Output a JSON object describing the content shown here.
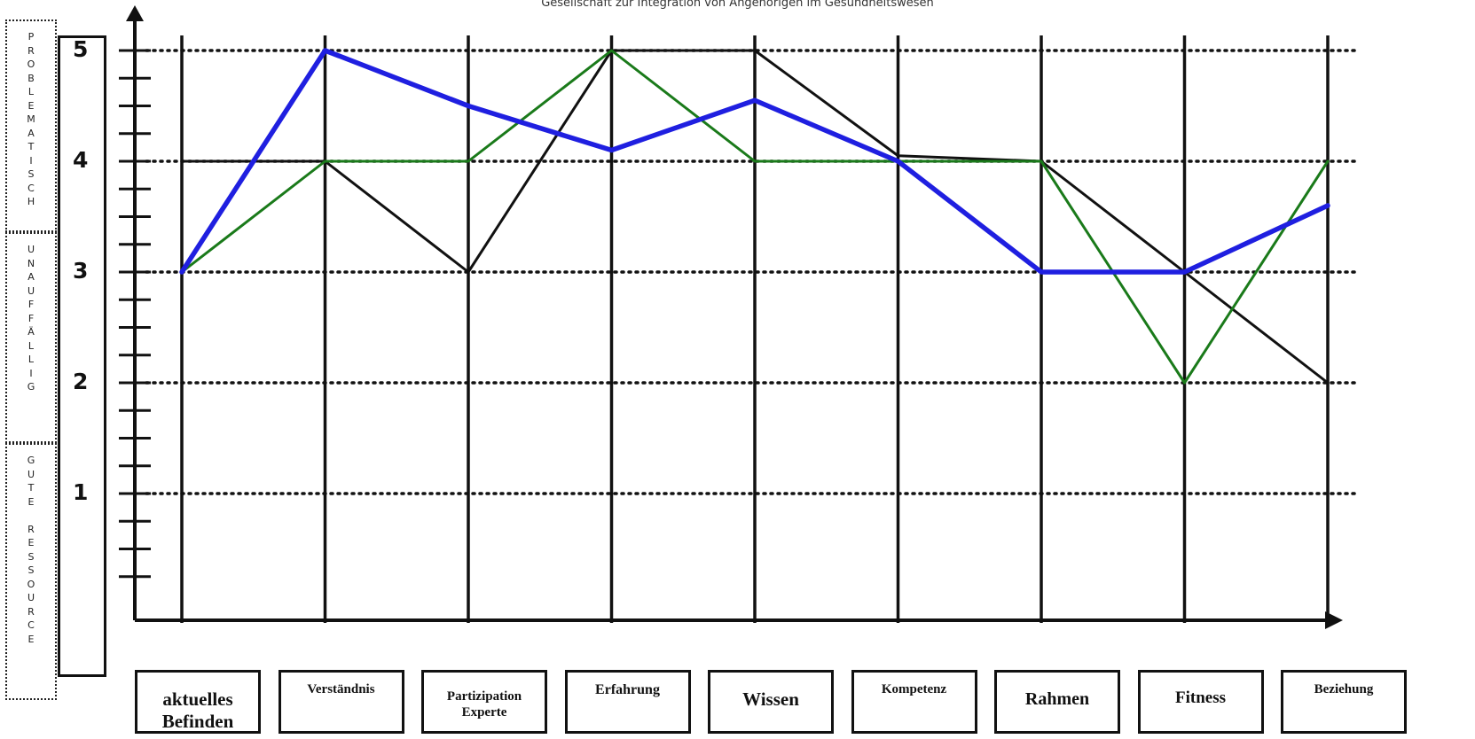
{
  "header": {
    "subtitle": "Gesellschaft zur Integration von Angehörigen im Gesundheitswesen"
  },
  "side_labels": {
    "problematisch": "PROBLEMATISCH",
    "unauffaellig": "UNAUFFÄLLIG",
    "gute_ressource": "GUTE RESSOURCE"
  },
  "chart_data": {
    "type": "line",
    "categories": [
      "aktuelles Befinden",
      "Verständnis",
      "Partizipation Experte",
      "Erfahrung",
      "Wissen",
      "Kompetenz",
      "Rahmen",
      "Fitness",
      "Beziehung"
    ],
    "category_lines": [
      [
        "aktuelles",
        "Befinden"
      ],
      [
        "Verständnis"
      ],
      [
        "Partizipation",
        "Experte"
      ],
      [
        "Erfahrung"
      ],
      [
        "Wissen"
      ],
      [
        "Kompetenz"
      ],
      [
        "Rahmen"
      ],
      [
        "Fitness"
      ],
      [
        "Beziehung"
      ]
    ],
    "y_tick_labels": [
      "1",
      "2",
      "3",
      "4",
      "5"
    ],
    "ylim": [
      0,
      5.3
    ],
    "gridlines": [
      1,
      2,
      3,
      4,
      5
    ],
    "series": [
      {
        "color": "#111111",
        "values": [
          4,
          4,
          3,
          5,
          5,
          4.05,
          4,
          3,
          2
        ]
      },
      {
        "color": "#1a7a1a",
        "values": [
          3,
          4,
          4,
          5,
          4,
          4,
          4,
          2,
          4
        ]
      },
      {
        "color": "#1f1fe0",
        "values": [
          3,
          5,
          4.5,
          4.1,
          4.55,
          4,
          3,
          3,
          3.6
        ]
      }
    ]
  }
}
